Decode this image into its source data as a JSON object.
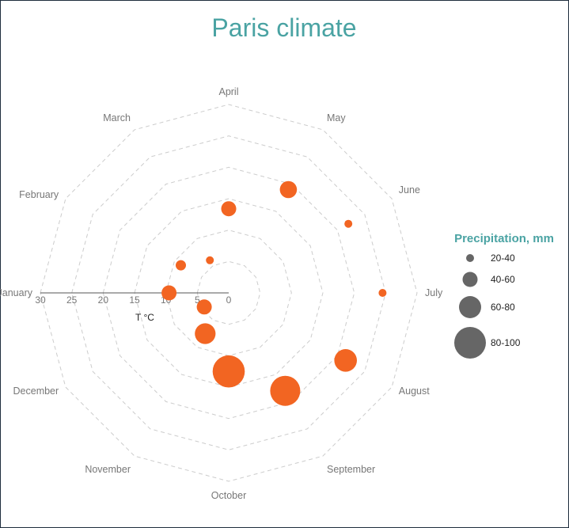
{
  "chart_data": {
    "type": "scatter",
    "subtype": "polar-bubble",
    "title": "Paris climate",
    "radial_axis_title": "T °C",
    "radial_range": [
      0,
      30
    ],
    "radial_ticks": [
      "0",
      "5",
      "10",
      "15",
      "20",
      "25",
      "30"
    ],
    "radial_direction": "reversed (0 at center, 30 at edge)",
    "grid": "dashed polygon",
    "categories": [
      "January",
      "February",
      "March",
      "April",
      "May",
      "June",
      "July",
      "August",
      "September",
      "October",
      "November",
      "December"
    ],
    "series": [
      {
        "values": [
          9.5,
          8.8,
          6.0,
          13.4,
          19.0,
          22.0,
          24.5,
          21.5,
          18.0,
          12.5,
          7.5,
          4.5
        ],
        "precipitation_mm": [
          50,
          40,
          25,
          50,
          55,
          25,
          25,
          70,
          90,
          95,
          65,
          50
        ]
      }
    ],
    "legend": {
      "title": "Precipitation, mm",
      "placement": "right",
      "items": [
        {
          "label": "20-40"
        },
        {
          "label": "40-60"
        },
        {
          "label": "60-80"
        },
        {
          "label": "80-100"
        }
      ]
    },
    "colors": {
      "marker": "#f26522",
      "legend_marker": "#666666",
      "title": "#4aa3a3",
      "grid": "#cccccc"
    }
  }
}
